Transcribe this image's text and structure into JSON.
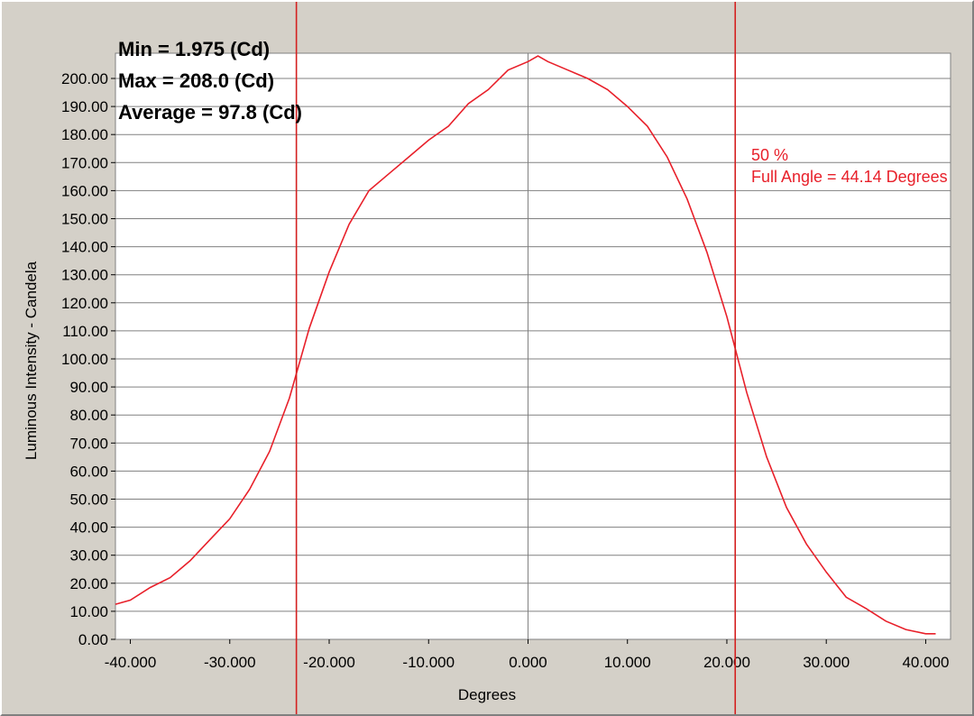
{
  "colors": {
    "background": "#d4d0c8",
    "plot_area": "#ffffff",
    "grid": "#808080",
    "curve": "#e8202a",
    "marker_lines": "#d42020",
    "text": "#000000"
  },
  "stats": {
    "min": "Min = 1.975 (Cd)",
    "max": "Max = 208.0 (Cd)",
    "average": "Average = 97.8 (Cd)"
  },
  "markers": {
    "percent_label": "50 %",
    "full_angle_label": "Full Angle = 44.14 Degrees"
  },
  "chart_data": {
    "type": "line",
    "title": "",
    "xlabel": "Degrees",
    "ylabel": "Luminous Intensity - Candela",
    "xlim": [
      -41.5,
      42.5
    ],
    "ylim": [
      0,
      209
    ],
    "grid": true,
    "x_ticks": [
      -40,
      -30,
      -20,
      -10,
      0,
      10,
      20,
      30,
      40
    ],
    "x_tick_labels": [
      "-40.000",
      "-30.000",
      "-20.000",
      "-10.000",
      "0.000",
      "10.000",
      "20.000",
      "30.000",
      "40.000"
    ],
    "y_ticks": [
      0,
      10,
      20,
      30,
      40,
      50,
      60,
      70,
      80,
      90,
      100,
      110,
      120,
      130,
      140,
      150,
      160,
      170,
      180,
      190,
      200
    ],
    "y_tick_labels": [
      "0.00",
      "10.00",
      "20.00",
      "30.00",
      "40.00",
      "50.00",
      "60.00",
      "70.00",
      "80.00",
      "90.00",
      "100.00",
      "110.00",
      "120.00",
      "130.00",
      "140.00",
      "150.00",
      "160.00",
      "170.00",
      "180.00",
      "190.00",
      "200.00"
    ],
    "vertical_markers": [
      -23.3,
      20.84
    ],
    "series": [
      {
        "x": [
          -41.5,
          -40,
          -38,
          -36,
          -34,
          -32,
          -30,
          -28,
          -26,
          -24,
          -22,
          -20,
          -18,
          -16,
          -14,
          -12,
          -10,
          -8,
          -6,
          -4,
          -2,
          0,
          1,
          2,
          4,
          6,
          8,
          10,
          12,
          14,
          16,
          18,
          20,
          22,
          24,
          26,
          28,
          30,
          32,
          34,
          36,
          38,
          40,
          41
        ],
        "y": [
          12.5,
          14,
          18.5,
          22,
          28,
          35.5,
          43,
          53.5,
          67,
          86,
          111,
          131,
          148,
          160,
          166,
          172,
          178,
          183,
          191,
          196,
          203,
          206,
          208,
          206,
          203,
          200,
          196,
          190,
          183,
          172,
          157,
          138,
          115,
          88,
          65,
          47,
          34,
          24,
          15,
          11,
          6.5,
          3.5,
          2,
          2
        ]
      }
    ]
  }
}
